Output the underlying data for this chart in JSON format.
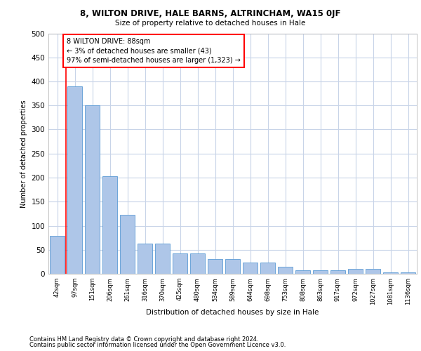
{
  "title1": "8, WILTON DRIVE, HALE BARNS, ALTRINCHAM, WA15 0JF",
  "title2": "Size of property relative to detached houses in Hale",
  "xlabel": "Distribution of detached houses by size in Hale",
  "ylabel": "Number of detached properties",
  "categories": [
    "42sqm",
    "97sqm",
    "151sqm",
    "206sqm",
    "261sqm",
    "316sqm",
    "370sqm",
    "425sqm",
    "480sqm",
    "534sqm",
    "589sqm",
    "644sqm",
    "698sqm",
    "753sqm",
    "808sqm",
    "863sqm",
    "917sqm",
    "972sqm",
    "1027sqm",
    "1081sqm",
    "1136sqm"
  ],
  "values": [
    79,
    390,
    351,
    203,
    122,
    63,
    63,
    43,
    43,
    30,
    30,
    23,
    23,
    14,
    8,
    8,
    8,
    10,
    10,
    3,
    3
  ],
  "bar_color": "#aec6e8",
  "bar_edge_color": "#5b9bd5",
  "annotation_text": "8 WILTON DRIVE: 88sqm\n← 3% of detached houses are smaller (43)\n97% of semi-detached houses are larger (1,323) →",
  "annotation_box_color": "white",
  "annotation_box_edge_color": "red",
  "vline_color": "red",
  "ylim": [
    0,
    500
  ],
  "yticks": [
    0,
    50,
    100,
    150,
    200,
    250,
    300,
    350,
    400,
    450,
    500
  ],
  "footer1": "Contains HM Land Registry data © Crown copyright and database right 2024.",
  "footer2": "Contains public sector information licensed under the Open Government Licence v3.0.",
  "bg_color": "#ffffff",
  "grid_color": "#c8d4e8"
}
